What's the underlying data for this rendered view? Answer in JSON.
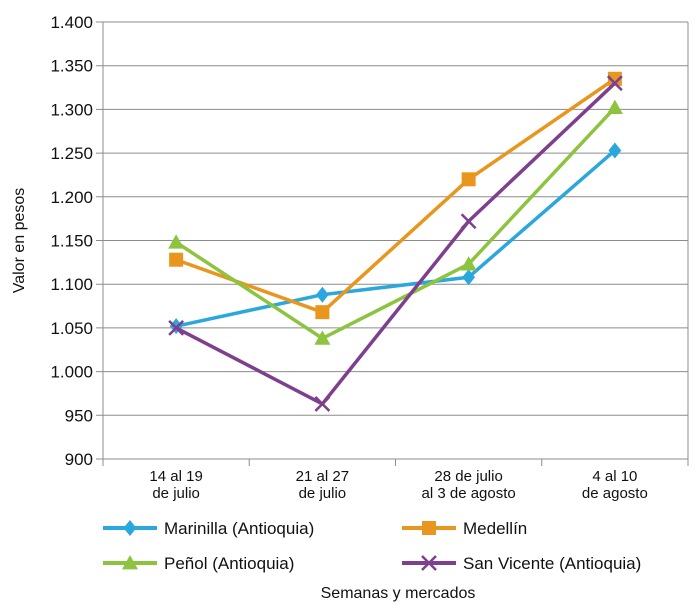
{
  "chart_data": {
    "type": "line",
    "categories": [
      [
        "14 al 19",
        "de julio"
      ],
      [
        "21 al 27",
        "de julio"
      ],
      [
        "28 de julio",
        "al 3 de agosto"
      ],
      [
        "4 al 10",
        "de agosto"
      ]
    ],
    "ylabel": "Valor en pesos",
    "xlabel": "Semanas y mercados",
    "ylim": [
      900,
      1400
    ],
    "yticks": [
      900,
      950,
      1000,
      1050,
      1100,
      1150,
      1200,
      1250,
      1300,
      1350,
      1400
    ],
    "ytick_labels": [
      "900",
      "950",
      "1.000",
      "1.050",
      "1.100",
      "1.150",
      "1.200",
      "1.250",
      "1.300",
      "1.350",
      "1.400"
    ],
    "grid": "horizontal",
    "legend_position": "bottom",
    "series": [
      {
        "name": "Marinilla (Antioquia)",
        "values": [
          1052,
          1088,
          1108,
          1253
        ],
        "color": "#2aa7dd",
        "marker": "diamond"
      },
      {
        "name": "Medellín",
        "values": [
          1128,
          1068,
          1220,
          1335
        ],
        "color": "#e8961d",
        "marker": "square"
      },
      {
        "name": "Peñol (Antioquia)",
        "values": [
          1148,
          1038,
          1123,
          1302
        ],
        "color": "#8dc43f",
        "marker": "triangle"
      },
      {
        "name": "San Vicente (Antioquia)",
        "values": [
          1050,
          963,
          1172,
          1330
        ],
        "color": "#7e3f8f",
        "marker": "x"
      }
    ]
  }
}
